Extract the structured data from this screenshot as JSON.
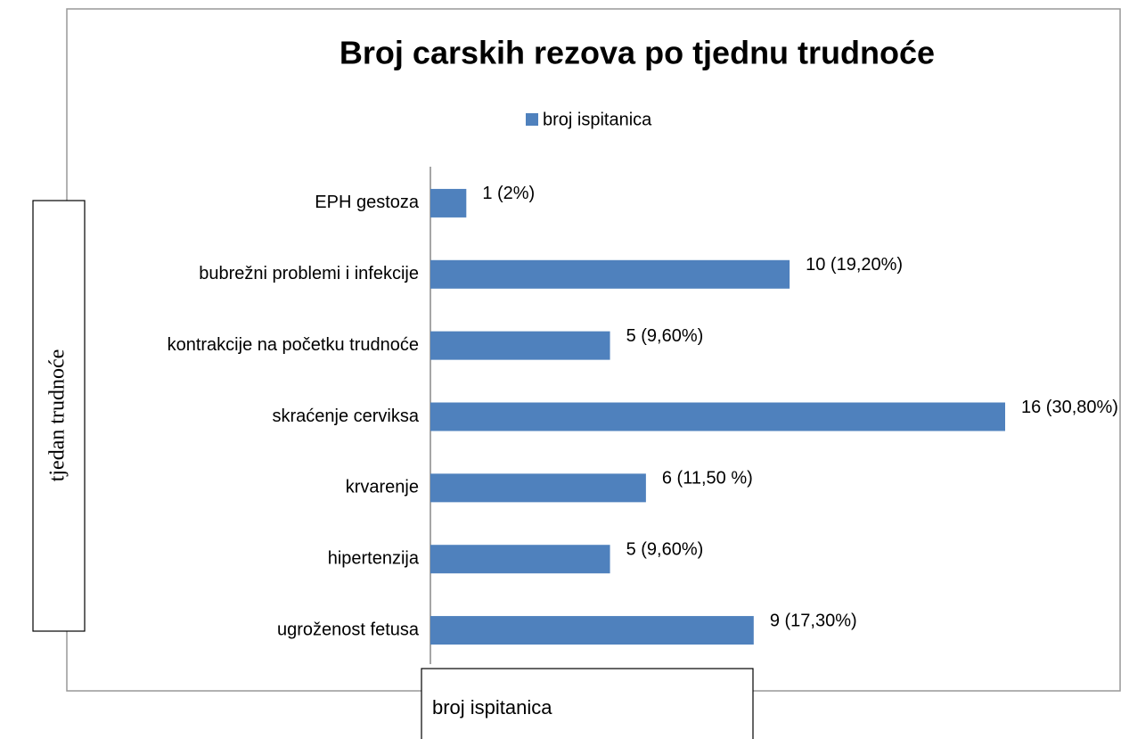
{
  "chart_data": {
    "type": "bar",
    "orientation": "horizontal",
    "title": "Broj carskih rezova po tjednu trudnoće",
    "y_label": "tjedan trudnoće",
    "x_label": "broj ispitanica",
    "categories": [
      "EPH gestoza",
      "bubrežni problemi i infekcije",
      "kontrakcije na početku trudnoće",
      "skraćenje cerviksa",
      "krvarenje",
      "hipertenzija",
      "ugroženost fetusa"
    ],
    "series": [
      {
        "name": "broj ispitanica",
        "color": "#4f81bd",
        "values": [
          1,
          10,
          5,
          16,
          6,
          5,
          9
        ],
        "value_labels": [
          "1 (2%)",
          "10 (19,20%)",
          "5 (9,60%)",
          "16 (30,80%)",
          "6 (11,50 %)",
          "5 (9,60%)",
          "9 (17,30%)"
        ]
      }
    ],
    "legend": "top"
  }
}
